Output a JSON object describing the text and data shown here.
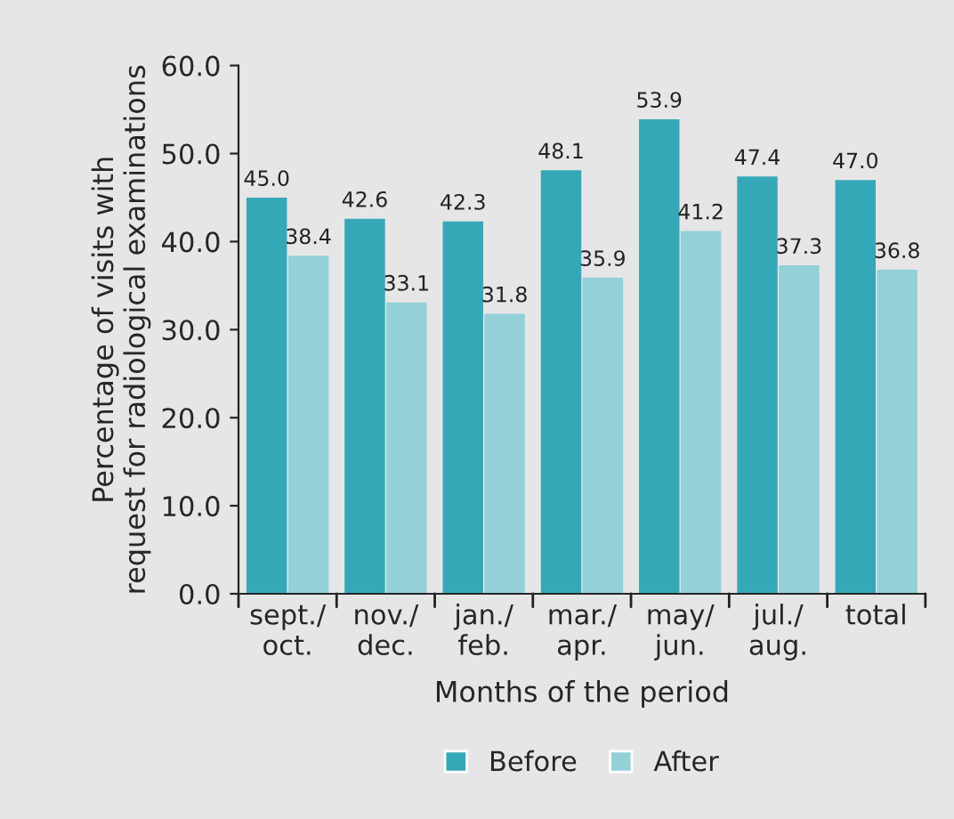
{
  "chart_data": {
    "type": "bar",
    "xlabel": "Months of the period",
    "ylabel": "Percentage of visits with\nrequest for radiological examinations",
    "categories": [
      "sept./\noct.",
      "nov./\ndec.",
      "jan./\nfeb.",
      "mar./\napr.",
      "may/\njun.",
      "jul./\naug.",
      "total"
    ],
    "series": [
      {
        "name": "Before",
        "color": "#35a8b8",
        "values": [
          45.0,
          42.6,
          42.3,
          48.1,
          53.9,
          47.4,
          47.0
        ],
        "value_labels": [
          "45.0",
          "42.6",
          "42.3",
          "48.1",
          "53.9",
          "47.4",
          "47.0"
        ]
      },
      {
        "name": "After",
        "color": "#93d0d8",
        "values": [
          38.4,
          33.1,
          31.8,
          35.9,
          41.2,
          37.3,
          36.8
        ],
        "value_labels": [
          "38.4",
          "33.1",
          "31.8",
          "35.9",
          "41.2",
          "37.3",
          "36.8"
        ]
      }
    ],
    "ylim": [
      0,
      60
    ],
    "yticks": [
      {
        "value": 0,
        "label": "0.0"
      },
      {
        "value": 10,
        "label": "10.0"
      },
      {
        "value": 20,
        "label": "20.0"
      },
      {
        "value": 30,
        "label": "30.0"
      },
      {
        "value": 40,
        "label": "40.0"
      },
      {
        "value": 50,
        "label": "50.0"
      },
      {
        "value": 60,
        "label": "60.0"
      }
    ],
    "legend": "bottom",
    "grid": false
  }
}
